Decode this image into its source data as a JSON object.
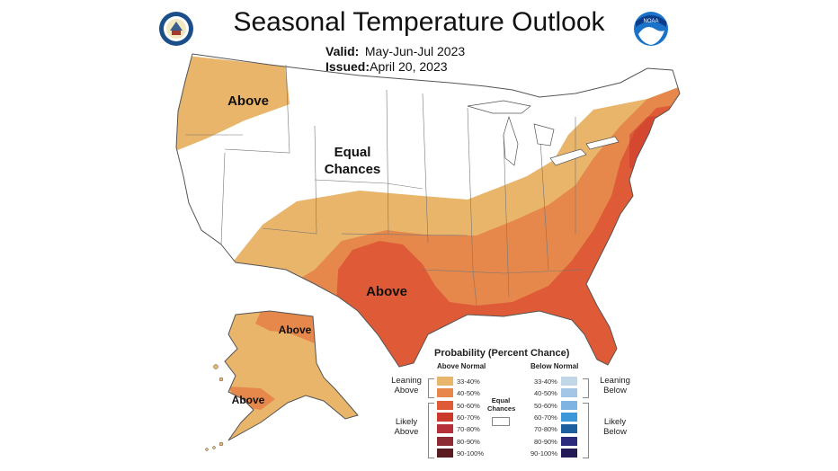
{
  "header": {
    "title": "Seasonal Temperature Outlook",
    "valid_label": "Valid:",
    "valid_value": "May-Jun-Jul 2023",
    "issued_label": "Issued:",
    "issued_value": "April 20, 2023"
  },
  "logos": {
    "left_icon": "department-of-commerce-seal",
    "right_icon": "noaa-logo",
    "right_text": "NOAA"
  },
  "map_labels": {
    "northwest": "Above",
    "central": "Equal Chances",
    "south": "Above",
    "alaska_north": "Above",
    "alaska_south": "Above"
  },
  "colors": {
    "c33_40_above": "#e9b56a",
    "c40_50_above": "#e6884b",
    "c50_60_above": "#df5a36",
    "c60_70_above": "#cc3a2c",
    "c70_80_above": "#b5303b",
    "c80_90_above": "#8d2b35",
    "c90_100_above": "#5a1a1f",
    "c33_40_below": "#c2d6ea",
    "c40_50_below": "#a3c5e6",
    "c50_60_below": "#7eb3e2",
    "c60_70_below": "#3c97d8",
    "c70_80_below": "#1d5e9e",
    "c80_90_below": "#2b2a7d",
    "c90_100_below": "#231a55",
    "equal_chances": "#ffffff"
  },
  "legend": {
    "title": "Probability (Percent Chance)",
    "above_heading": "Above Normal",
    "below_heading": "Below Normal",
    "equal_chances": "Equal Chances",
    "leaning_above": "Leaning Above",
    "likely_above": "Likely Above",
    "leaning_below": "Leaning Below",
    "likely_below": "Likely Below",
    "ranges": [
      "33-40%",
      "40-50%",
      "50-60%",
      "60-70%",
      "70-80%",
      "80-90%",
      "90-100%"
    ]
  }
}
